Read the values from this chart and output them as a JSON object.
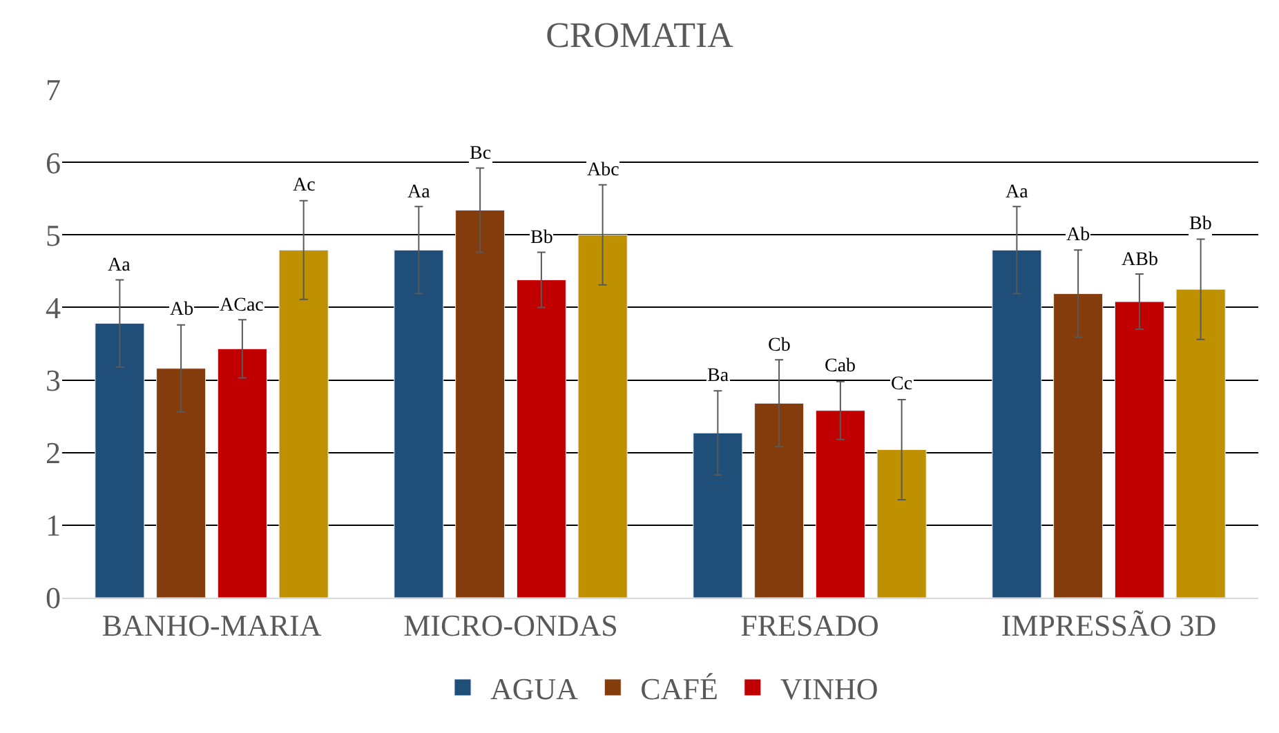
{
  "chart_data": {
    "type": "bar",
    "title": "CROMATIA",
    "categories": [
      "BANHO-MARIA",
      "MICRO-ONDAS",
      "FRESADO",
      "IMPRESSÃO 3D"
    ],
    "series": [
      {
        "name": "AGUA",
        "color": "#1f4e79",
        "values": [
          3.78,
          4.79,
          2.27,
          4.79
        ],
        "errors": [
          0.6,
          0.6,
          0.58,
          0.6
        ],
        "value_labels": [
          "Aa",
          "Aa",
          "Ba",
          "Aa"
        ]
      },
      {
        "name": "CAFÉ",
        "color": "#843c0c",
        "values": [
          3.16,
          5.34,
          2.68,
          4.19
        ],
        "errors": [
          0.6,
          0.58,
          0.6,
          0.6
        ],
        "value_labels": [
          "Ab",
          "Bc",
          "Cb",
          "Ab"
        ]
      },
      {
        "name": "VINHO",
        "color": "#c00000",
        "values": [
          3.43,
          4.38,
          2.58,
          4.08
        ],
        "errors": [
          0.4,
          0.38,
          0.4,
          0.38
        ],
        "value_labels": [
          "ACac",
          "Bb",
          "Cab",
          "ABb"
        ]
      },
      {
        "color": "#bf9000",
        "values": [
          4.79,
          5.0,
          2.04,
          4.25
        ],
        "errors": [
          0.68,
          0.69,
          0.69,
          0.69
        ],
        "value_labels": [
          "Ac",
          "Abc",
          "Cc",
          "Bb"
        ]
      }
    ],
    "ylim": [
      0,
      7
    ],
    "yticks": [
      0,
      1,
      2,
      3,
      4,
      5,
      6,
      7
    ],
    "grid": "y",
    "legend": "bottom"
  }
}
